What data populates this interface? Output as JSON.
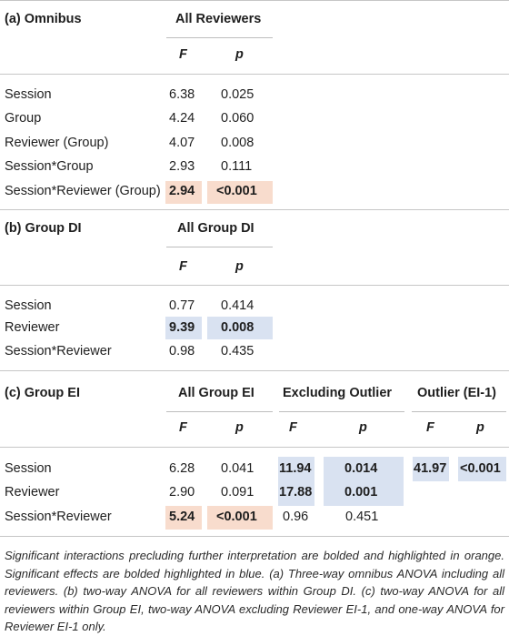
{
  "section_a": {
    "label": "(a) Omnibus",
    "group_header": "All Reviewers",
    "col_f": "F",
    "col_p": "p",
    "rows": [
      {
        "label": "Session",
        "f": "6.38",
        "p": "0.025"
      },
      {
        "label": "Group",
        "f": "4.24",
        "p": "0.060"
      },
      {
        "label": "Reviewer (Group)",
        "f": "4.07",
        "p": "0.008"
      },
      {
        "label": "Session*Group",
        "f": "2.93",
        "p": "0.111"
      },
      {
        "label": "Session*Reviewer (Group)",
        "f": "2.94",
        "p": "<0.001"
      }
    ]
  },
  "section_b": {
    "label": "(b) Group DI",
    "group_header": "All Group DI",
    "col_f": "F",
    "col_p": "p",
    "rows": [
      {
        "label": "Session",
        "f": "0.77",
        "p": "0.414"
      },
      {
        "label": "Reviewer",
        "f": "9.39",
        "p": "0.008"
      },
      {
        "label": "Session*Reviewer",
        "f": "0.98",
        "p": "0.435"
      }
    ]
  },
  "section_c": {
    "label": "(c) Group EI",
    "group_headers": [
      "All Group EI",
      "Excluding Outlier",
      "Outlier (EI-1)"
    ],
    "col_f": "F",
    "col_p": "p",
    "rows": [
      {
        "label": "Session",
        "f1": "6.28",
        "p1": "0.041",
        "f2": "11.94",
        "p2": "0.014",
        "f3": "41.97",
        "p3": "<0.001"
      },
      {
        "label": "Reviewer",
        "f1": "2.90",
        "p1": "0.091",
        "f2": "17.88",
        "p2": "0.001",
        "f3": "",
        "p3": ""
      },
      {
        "label": "Session*Reviewer",
        "f1": "5.24",
        "p1": "<0.001",
        "f2": "0.96",
        "p2": "0.451",
        "f3": "",
        "p3": ""
      }
    ]
  },
  "caption": "Significant interactions precluding further interpretation are bolded and highlighted in orange. Significant effects are bolded highlighted in blue. (a) Three-way omnibus ANOVA including all reviewers. (b) two-way ANOVA for all reviewers within Group DI. (c) two-way ANOVA for all reviewers within Group EI, two-way ANOVA excluding Reviewer EI-1, and one-way ANOVA for Reviewer EI-1 only.",
  "colors": {
    "significant_effect": "#d9e2f1",
    "significant_interaction": "#f8dccd"
  }
}
